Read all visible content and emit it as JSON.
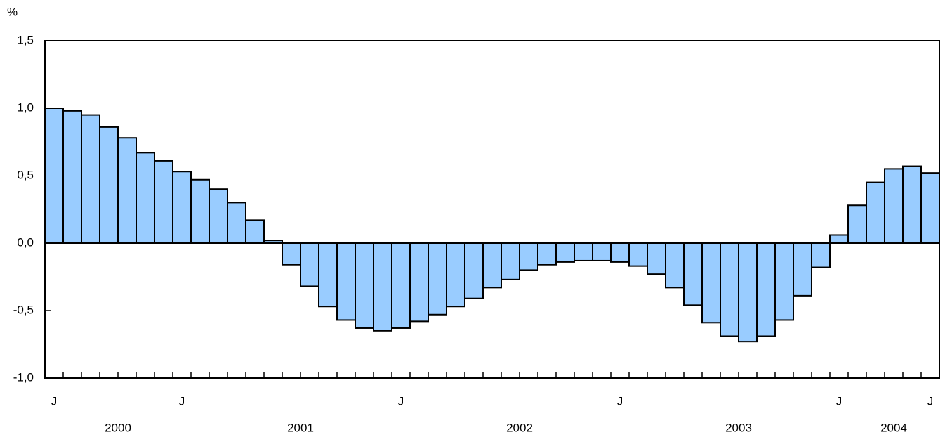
{
  "chart_data": {
    "type": "bar",
    "y_label": "%",
    "categories": [
      "J",
      null,
      null,
      null,
      null,
      null,
      null,
      "J",
      null,
      null,
      null,
      null,
      null,
      null,
      null,
      null,
      null,
      null,
      null,
      "J",
      null,
      null,
      null,
      null,
      null,
      null,
      null,
      null,
      null,
      null,
      null,
      "J",
      null,
      null,
      null,
      null,
      null,
      null,
      null,
      null,
      null,
      null,
      null,
      "J",
      null,
      null,
      null,
      null,
      "J"
    ],
    "values": [
      1.0,
      0.98,
      0.95,
      0.86,
      0.78,
      0.67,
      0.61,
      0.53,
      0.47,
      0.4,
      0.3,
      0.17,
      0.02,
      -0.16,
      -0.32,
      -0.47,
      -0.57,
      -0.63,
      -0.65,
      -0.63,
      -0.58,
      -0.53,
      -0.47,
      -0.41,
      -0.33,
      -0.27,
      -0.2,
      -0.16,
      -0.14,
      -0.13,
      -0.13,
      -0.14,
      -0.17,
      -0.23,
      -0.33,
      -0.46,
      -0.59,
      -0.69,
      -0.73,
      -0.69,
      -0.57,
      -0.39,
      -0.18,
      0.06,
      0.28,
      0.45,
      0.55,
      0.57,
      0.52
    ],
    "year_labels": [
      "2000",
      "2001",
      "2002",
      "2003",
      "2004"
    ],
    "color": "#99ccff",
    "ylim": [
      -1.0,
      1.5
    ],
    "yticks": [
      {
        "value": -1.0,
        "label": "-1,0"
      },
      {
        "value": -0.5,
        "label": "-0,5"
      },
      {
        "value": 0.0,
        "label": "0,0"
      },
      {
        "value": 0.5,
        "label": "0,5"
      },
      {
        "value": 1.0,
        "label": "1,0"
      },
      {
        "value": 1.5,
        "label": "1,5"
      }
    ]
  }
}
